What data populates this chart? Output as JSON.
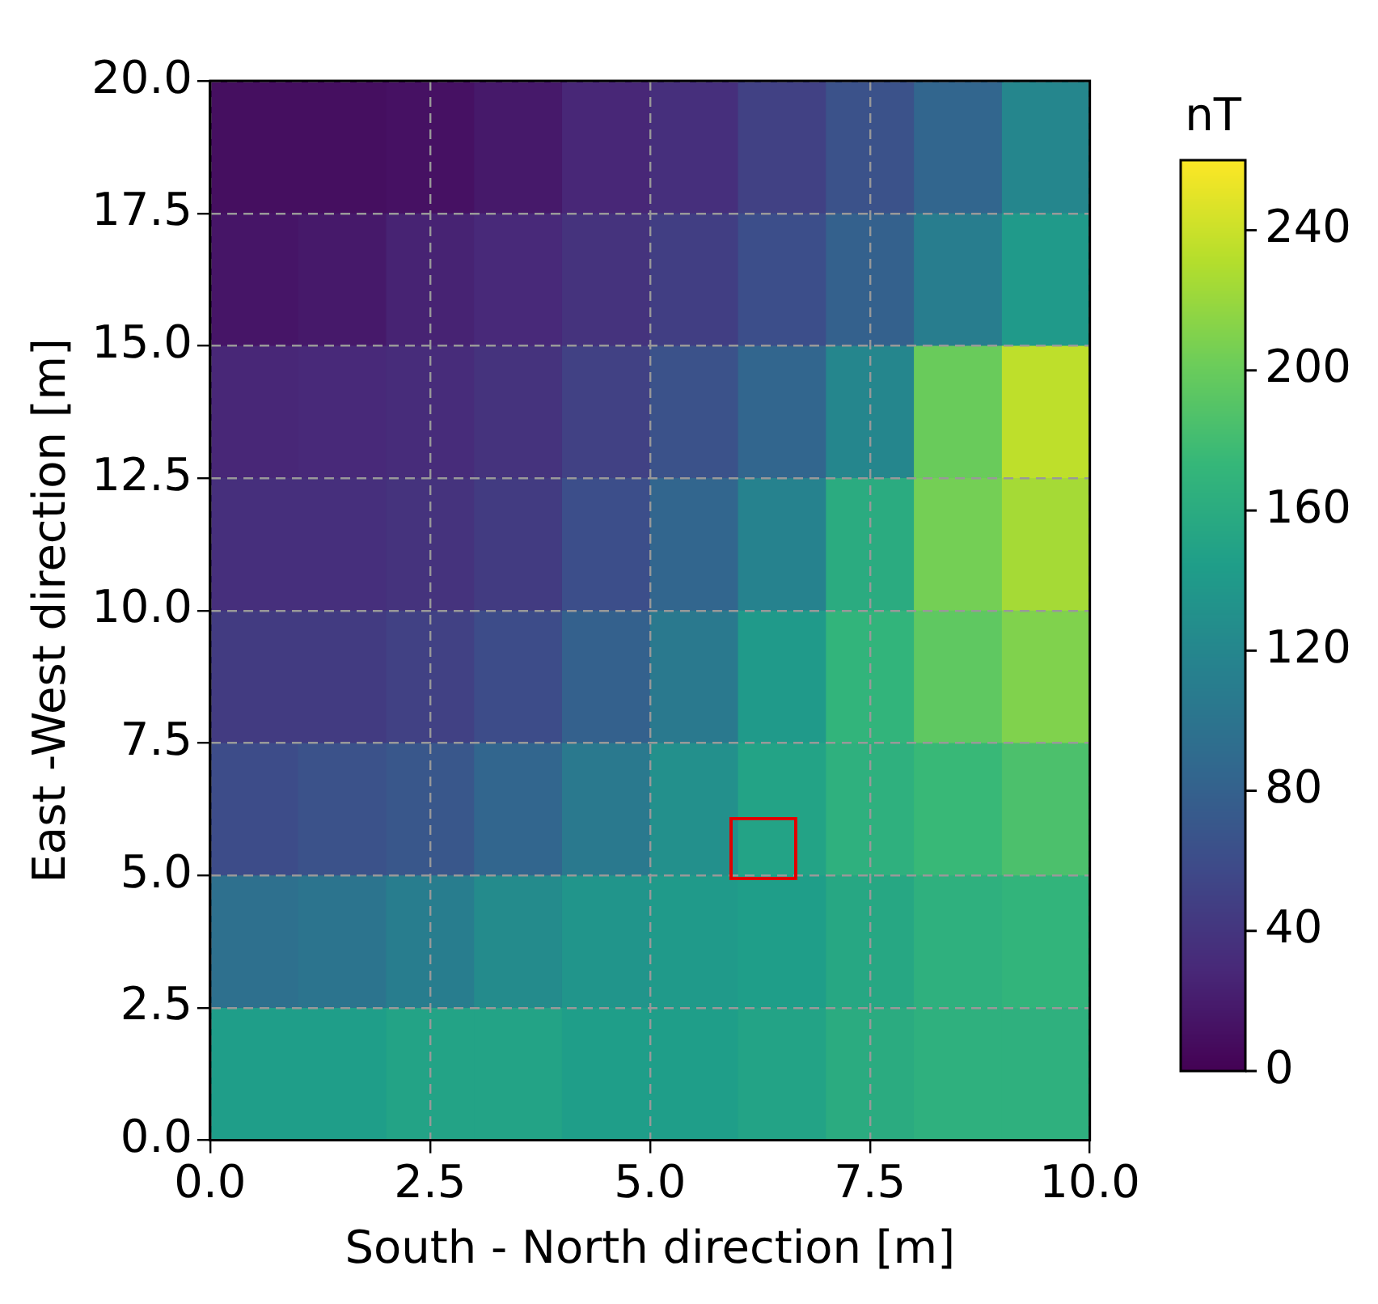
{
  "chart_data": {
    "type": "heatmap",
    "xlabel": "South - North direction [m]",
    "ylabel": "East -West direction [m]",
    "clabel": "nT",
    "xlim": [
      0,
      10
    ],
    "xticks": [
      {
        "value": 0,
        "label": "0.0"
      },
      {
        "value": 2.5,
        "label": "2.5"
      },
      {
        "value": 5,
        "label": "5.0"
      },
      {
        "value": 7.5,
        "label": "7.5"
      },
      {
        "value": 10,
        "label": "10.0"
      }
    ],
    "ylim": [
      0,
      20
    ],
    "yticks": [
      {
        "value": 0,
        "label": "0.0"
      },
      {
        "value": 2.5,
        "label": "2.5"
      },
      {
        "value": 5,
        "label": "5.0"
      },
      {
        "value": 7.5,
        "label": "7.5"
      },
      {
        "value": 10,
        "label": "10.0"
      },
      {
        "value": 12.5,
        "label": "12.5"
      },
      {
        "value": 15,
        "label": "15.0"
      },
      {
        "value": 17.5,
        "label": "17.5"
      },
      {
        "value": 20,
        "label": "20.0"
      }
    ],
    "clim": [
      0,
      260
    ],
    "cticks": [
      0,
      40,
      80,
      120,
      160,
      200,
      240
    ],
    "grid": true,
    "cells": [
      [
        10,
        10,
        12,
        18,
        28,
        35,
        50,
        65,
        85,
        120
      ],
      [
        15,
        18,
        25,
        30,
        38,
        48,
        62,
        80,
        110,
        140
      ],
      [
        28,
        30,
        32,
        38,
        50,
        65,
        85,
        120,
        200,
        235
      ],
      [
        35,
        35,
        38,
        45,
        62,
        85,
        115,
        160,
        205,
        225
      ],
      [
        45,
        45,
        50,
        60,
        80,
        105,
        140,
        170,
        195,
        210
      ],
      [
        60,
        65,
        70,
        85,
        105,
        130,
        150,
        165,
        175,
        185
      ],
      [
        95,
        100,
        110,
        125,
        135,
        140,
        145,
        155,
        165,
        170
      ],
      [
        145,
        145,
        150,
        150,
        145,
        145,
        150,
        160,
        165,
        165
      ]
    ]
  }
}
